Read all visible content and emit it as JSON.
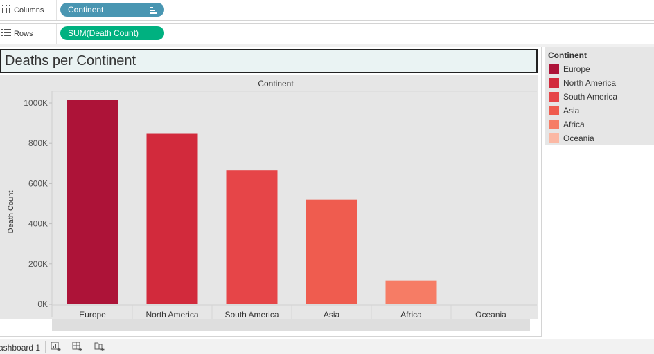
{
  "shelves": {
    "columns": {
      "label": "Columns",
      "pill": "Continent"
    },
    "rows": {
      "label": "Rows",
      "pill": "SUM(Death Count)"
    }
  },
  "icons": {
    "columns": "columns-icon",
    "rows": "rows-icon",
    "sort": "sort-descending-icon",
    "new_worksheet": "new-worksheet-icon",
    "new_dashboard": "new-dashboard-icon",
    "new_story": "new-story-icon"
  },
  "colors": {
    "columns_pill": "#4996b2",
    "rows_pill": "#00b180",
    "Europe": "#ad1338",
    "North America": "#d22a3c",
    "South America": "#e64548",
    "Asia": "#ef5c4f",
    "Africa": "#f67c65",
    "Oceania": "#fbb8a4"
  },
  "sheet_title": "Deaths per Continent",
  "legend": {
    "title": "Continent",
    "items": [
      "Europe",
      "North America",
      "South America",
      "Asia",
      "Africa",
      "Oceania"
    ]
  },
  "chart_data": {
    "type": "bar",
    "title": "",
    "header": "Continent",
    "xlabel": "",
    "ylabel": "Death Count",
    "categories": [
      "Europe",
      "North America",
      "South America",
      "Asia",
      "Africa",
      "Oceania"
    ],
    "values": [
      1016000,
      847000,
      666000,
      520000,
      118000,
      0
    ],
    "yticks": [
      0,
      200000,
      400000,
      600000,
      800000,
      1000000
    ],
    "ytick_labels": [
      "0K",
      "200K",
      "400K",
      "600K",
      "800K",
      "1000K"
    ],
    "ylim": [
      0,
      1080000
    ],
    "grid": false,
    "legend_position": "right"
  },
  "footer": {
    "sheet_tab": "ashboard 1"
  }
}
